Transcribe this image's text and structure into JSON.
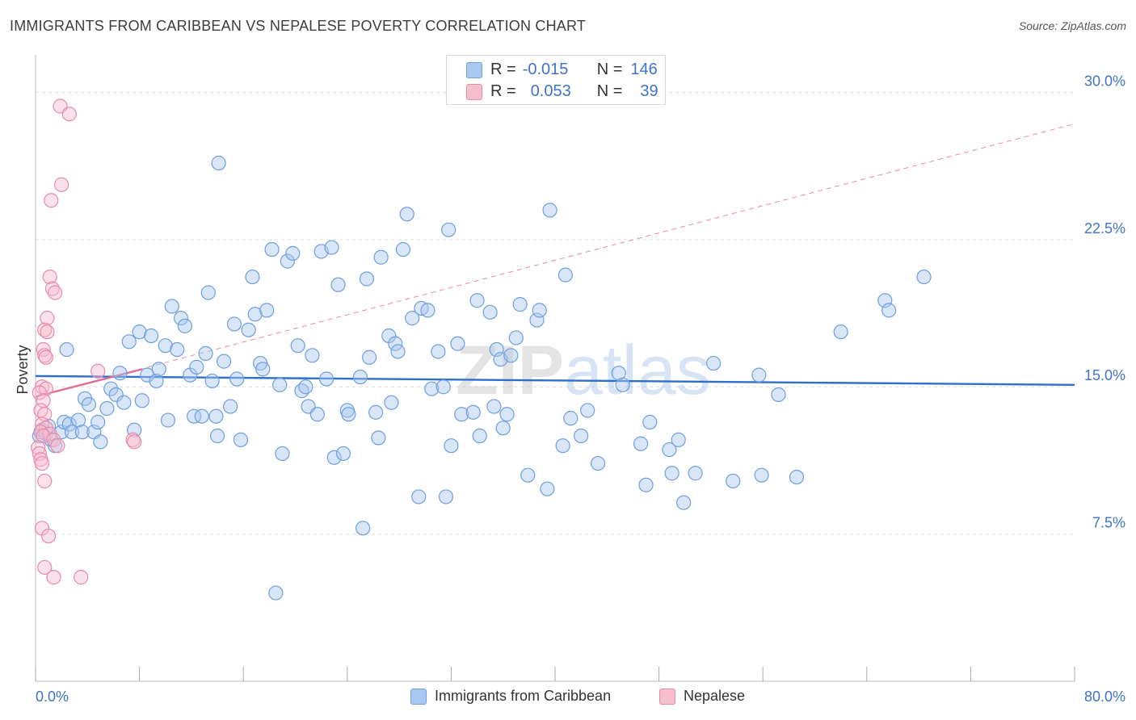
{
  "title": "IMMIGRANTS FROM CARIBBEAN VS NEPALESE POVERTY CORRELATION CHART",
  "source": "Source: ZipAtlas.com",
  "watermark": "ZIPatlas",
  "colors": {
    "blue_fill": "#a9c8f0",
    "blue_stroke": "#6f9fdc",
    "blue_line": "#2f6fcc",
    "pink_fill": "#f6bfd0",
    "pink_stroke": "#e98aa8",
    "pink_line": "#e06b95",
    "value_text": "#3f74c8",
    "grid": "#dddddd"
  },
  "legend": {
    "rows": [
      {
        "r_label": "R =",
        "r_value": "-0.015",
        "n_label": "N =",
        "n_value": "146"
      },
      {
        "r_label": "R =",
        "r_value": "0.053",
        "n_label": "N =",
        "n_value": "39"
      }
    ],
    "bottom": [
      "Immigrants from Caribbean",
      "Nepalese"
    ]
  },
  "chart_data": {
    "type": "scatter",
    "ylabel": "Poverty",
    "x_tick_labels": [
      "0.0%",
      "80.0%"
    ],
    "y_tick_labels": [
      "7.5%",
      "15.0%",
      "22.5%",
      "30.0%"
    ],
    "xlim": [
      0,
      80
    ],
    "ylim": [
      0,
      31.5
    ],
    "y_ticks": [
      7.5,
      15.0,
      22.5,
      30.0
    ],
    "x_ticks": [
      0,
      8,
      16,
      24,
      32,
      40,
      48,
      56,
      64,
      72,
      80
    ],
    "grid": "horizontal dashed",
    "legend_position": "top-center",
    "series": [
      {
        "name": "Immigrants from Caribbean",
        "color": "blue",
        "trend": {
          "x": [
            0,
            80
          ],
          "y": [
            15.55,
            15.1
          ],
          "style": "solid"
        },
        "points": [
          [
            0.3,
            12.5
          ],
          [
            0.5,
            12.8
          ],
          [
            0.8,
            12.6
          ],
          [
            1.0,
            13.0
          ],
          [
            1.2,
            12.3
          ],
          [
            1.5,
            12.0
          ],
          [
            2.0,
            12.7
          ],
          [
            2.2,
            13.2
          ],
          [
            2.4,
            16.9
          ],
          [
            2.6,
            13.1
          ],
          [
            2.8,
            12.7
          ],
          [
            3.3,
            13.3
          ],
          [
            3.6,
            12.7
          ],
          [
            3.8,
            14.4
          ],
          [
            4.1,
            14.1
          ],
          [
            4.5,
            12.7
          ],
          [
            4.8,
            13.2
          ],
          [
            5.0,
            12.2
          ],
          [
            5.5,
            13.9
          ],
          [
            5.8,
            14.9
          ],
          [
            6.2,
            14.6
          ],
          [
            6.5,
            15.7
          ],
          [
            6.8,
            14.2
          ],
          [
            7.2,
            17.3
          ],
          [
            7.6,
            12.8
          ],
          [
            8.0,
            17.8
          ],
          [
            8.2,
            14.3
          ],
          [
            8.6,
            15.6
          ],
          [
            8.9,
            17.6
          ],
          [
            9.3,
            15.3
          ],
          [
            9.5,
            15.9
          ],
          [
            10.0,
            17.1
          ],
          [
            10.2,
            13.3
          ],
          [
            10.5,
            19.1
          ],
          [
            10.9,
            16.9
          ],
          [
            11.2,
            18.5
          ],
          [
            11.5,
            18.1
          ],
          [
            11.9,
            15.6
          ],
          [
            12.2,
            13.5
          ],
          [
            12.4,
            16.0
          ],
          [
            12.8,
            13.5
          ],
          [
            13.1,
            16.7
          ],
          [
            13.3,
            19.8
          ],
          [
            13.6,
            15.3
          ],
          [
            13.9,
            13.5
          ],
          [
            14.1,
            26.4
          ],
          [
            14.5,
            16.3
          ],
          [
            15.0,
            14.0
          ],
          [
            15.3,
            18.2
          ],
          [
            15.5,
            15.4
          ],
          [
            15.8,
            12.3
          ],
          [
            16.4,
            17.9
          ],
          [
            16.7,
            20.6
          ],
          [
            16.9,
            18.7
          ],
          [
            17.3,
            16.2
          ],
          [
            17.5,
            15.9
          ],
          [
            17.8,
            18.9
          ],
          [
            18.2,
            22.0
          ],
          [
            18.5,
            4.5
          ],
          [
            18.8,
            15.1
          ],
          [
            19.0,
            11.6
          ],
          [
            19.4,
            21.4
          ],
          [
            19.8,
            21.8
          ],
          [
            20.2,
            17.1
          ],
          [
            20.5,
            14.8
          ],
          [
            20.8,
            15.0
          ],
          [
            21.0,
            14.0
          ],
          [
            21.3,
            16.6
          ],
          [
            21.7,
            13.6
          ],
          [
            22.0,
            21.9
          ],
          [
            22.4,
            15.4
          ],
          [
            22.8,
            22.1
          ],
          [
            23.0,
            11.4
          ],
          [
            23.3,
            20.2
          ],
          [
            23.7,
            11.6
          ],
          [
            24.0,
            13.8
          ],
          [
            24.1,
            13.6
          ],
          [
            25.0,
            15.5
          ],
          [
            25.2,
            7.8
          ],
          [
            25.5,
            20.5
          ],
          [
            25.7,
            16.5
          ],
          [
            26.2,
            13.7
          ],
          [
            26.4,
            12.4
          ],
          [
            26.6,
            21.6
          ],
          [
            27.2,
            17.6
          ],
          [
            27.4,
            14.2
          ],
          [
            27.7,
            17.2
          ],
          [
            27.9,
            16.8
          ],
          [
            28.3,
            22.0
          ],
          [
            28.6,
            23.8
          ],
          [
            29.0,
            18.5
          ],
          [
            29.5,
            9.4
          ],
          [
            29.7,
            19.0
          ],
          [
            30.2,
            18.9
          ],
          [
            30.5,
            14.9
          ],
          [
            31.0,
            16.8
          ],
          [
            31.4,
            15.0
          ],
          [
            31.6,
            9.4
          ],
          [
            31.8,
            23.0
          ],
          [
            32.0,
            12.0
          ],
          [
            32.5,
            17.2
          ],
          [
            32.8,
            13.6
          ],
          [
            33.7,
            13.7
          ],
          [
            34.0,
            19.4
          ],
          [
            34.2,
            12.5
          ],
          [
            35.0,
            18.8
          ],
          [
            35.3,
            14.0
          ],
          [
            35.5,
            16.9
          ],
          [
            35.8,
            16.4
          ],
          [
            36.0,
            12.9
          ],
          [
            36.3,
            13.6
          ],
          [
            36.6,
            16.6
          ],
          [
            37.0,
            17.5
          ],
          [
            37.3,
            19.2
          ],
          [
            37.9,
            10.5
          ],
          [
            38.6,
            18.4
          ],
          [
            38.8,
            18.9
          ],
          [
            39.4,
            9.8
          ],
          [
            39.6,
            24.0
          ],
          [
            40.6,
            12.0
          ],
          [
            40.8,
            20.7
          ],
          [
            41.2,
            13.4
          ],
          [
            42.0,
            12.5
          ],
          [
            42.5,
            13.8
          ],
          [
            43.3,
            11.1
          ],
          [
            44.9,
            15.7
          ],
          [
            45.2,
            15.1
          ],
          [
            46.6,
            12.1
          ],
          [
            47.0,
            10.0
          ],
          [
            47.3,
            13.2
          ],
          [
            48.8,
            11.8
          ],
          [
            49.0,
            10.6
          ],
          [
            49.5,
            12.3
          ],
          [
            49.9,
            9.1
          ],
          [
            50.8,
            10.6
          ],
          [
            52.2,
            16.2
          ],
          [
            53.7,
            10.2
          ],
          [
            55.7,
            15.6
          ],
          [
            55.9,
            10.5
          ],
          [
            57.2,
            14.6
          ],
          [
            58.6,
            10.4
          ],
          [
            62.0,
            17.8
          ],
          [
            65.4,
            19.4
          ],
          [
            65.7,
            18.9
          ],
          [
            68.4,
            20.6
          ],
          [
            14.0,
            12.5
          ]
        ]
      },
      {
        "name": "Nepalese",
        "color": "pink",
        "trend": {
          "x": [
            0,
            8.2
          ],
          "y": [
            14.5,
            15.9
          ],
          "style": "solid",
          "extended": {
            "x": [
              0,
              80
            ],
            "y": [
              14.5,
              28.4
            ],
            "style": "dashed"
          }
        },
        "points": [
          [
            1.9,
            29.3
          ],
          [
            2.6,
            28.9
          ],
          [
            2.0,
            25.3
          ],
          [
            1.2,
            24.5
          ],
          [
            1.1,
            20.6
          ],
          [
            1.3,
            20.0
          ],
          [
            1.5,
            19.8
          ],
          [
            0.9,
            18.5
          ],
          [
            0.7,
            17.9
          ],
          [
            0.9,
            17.8
          ],
          [
            0.6,
            16.9
          ],
          [
            0.7,
            16.6
          ],
          [
            0.8,
            16.5
          ],
          [
            4.8,
            15.8
          ],
          [
            0.5,
            15.0
          ],
          [
            0.8,
            14.9
          ],
          [
            0.3,
            14.7
          ],
          [
            0.6,
            14.3
          ],
          [
            0.4,
            13.8
          ],
          [
            0.7,
            13.6
          ],
          [
            0.5,
            13.1
          ],
          [
            0.8,
            12.9
          ],
          [
            0.4,
            12.7
          ],
          [
            1.1,
            12.6
          ],
          [
            0.6,
            12.5
          ],
          [
            1.4,
            12.3
          ],
          [
            1.7,
            12.0
          ],
          [
            0.2,
            11.9
          ],
          [
            0.3,
            11.6
          ],
          [
            0.4,
            11.3
          ],
          [
            0.5,
            11.1
          ],
          [
            0.7,
            10.2
          ],
          [
            7.5,
            12.3
          ],
          [
            7.6,
            12.2
          ],
          [
            0.5,
            7.8
          ],
          [
            1.0,
            7.4
          ],
          [
            0.7,
            5.8
          ],
          [
            1.4,
            5.3
          ],
          [
            3.5,
            5.3
          ]
        ]
      }
    ]
  }
}
